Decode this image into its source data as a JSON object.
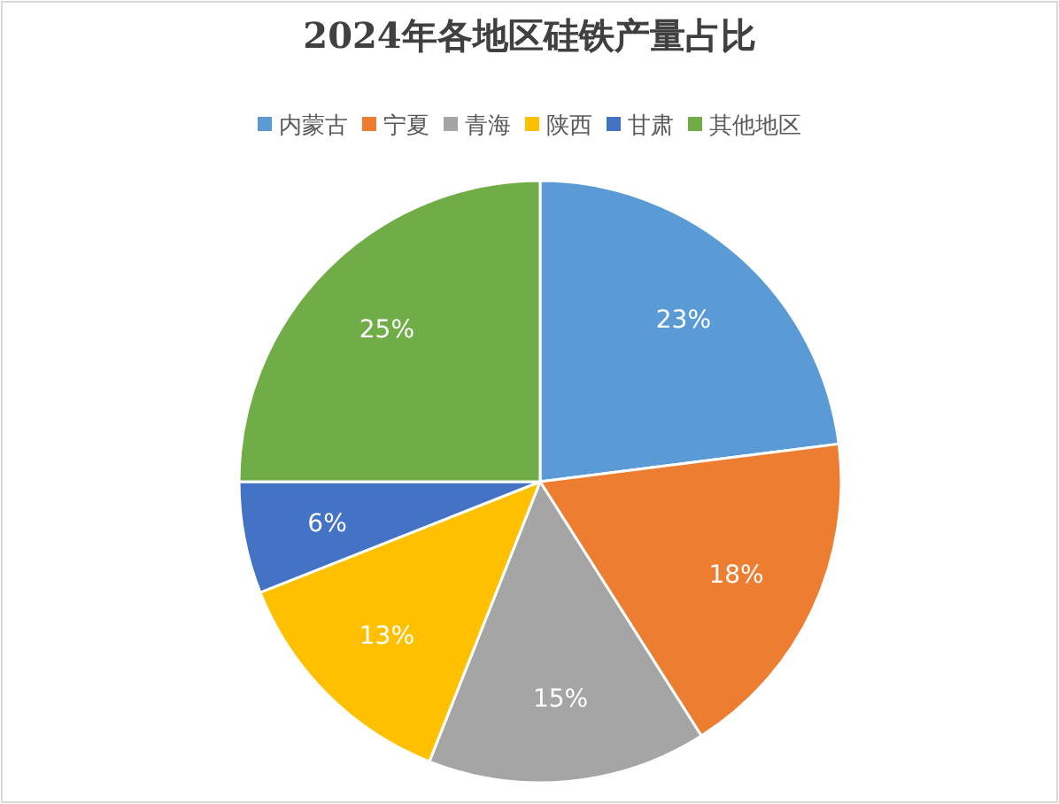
{
  "chart_data": {
    "type": "pie",
    "title": "2024年各地区硅铁产量占比",
    "categories": [
      "内蒙古",
      "宁夏",
      "青海",
      "陕西",
      "甘肃",
      "其他地区"
    ],
    "values": [
      23,
      18,
      15,
      13,
      6,
      25
    ],
    "colors": [
      "#5b9bd5",
      "#ed7d31",
      "#a5a5a5",
      "#ffc000",
      "#4472c4",
      "#70ad47"
    ],
    "legend": "top",
    "value_labels": [
      "23%",
      "18%",
      "15%",
      "13%",
      "6%",
      "25%"
    ]
  }
}
